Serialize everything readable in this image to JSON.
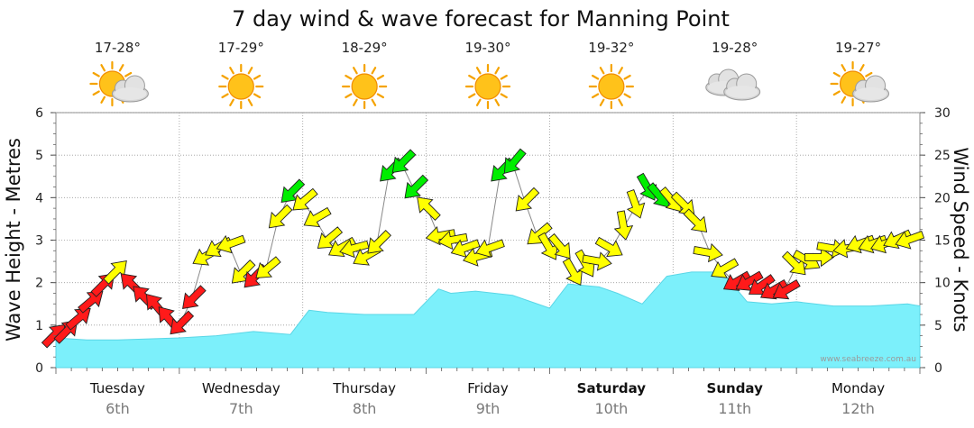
{
  "title": "7 day wind & wave forecast for Manning Point",
  "watermark": "www.seabreeze.com.au",
  "colors": {
    "wave_fill": "#7cf0fb",
    "strong": "#ff1a1a",
    "moderate": "#ffff00",
    "light": "#00ee00",
    "grid": "#9a9a9a"
  },
  "chart_data": {
    "type": "area",
    "title": "7 day wind & wave forecast for Manning Point",
    "ylabel": "Wave Height - Metres",
    "y2label": "Wind Speed - Knots",
    "ylim": [
      0,
      6
    ],
    "y2lim": [
      0,
      30
    ],
    "yticks": [
      "0",
      "1",
      "2",
      "3",
      "4",
      "5",
      "6"
    ],
    "y2ticks": [
      "0",
      "5",
      "10",
      "15",
      "20",
      "25",
      "30"
    ],
    "grid": true,
    "days": [
      {
        "day": "Tuesday",
        "date": "6th",
        "temp": "17-28°",
        "weather": "partly-cloudy",
        "bold": false
      },
      {
        "day": "Wednesday",
        "date": "7th",
        "temp": "17-29°",
        "weather": "sunny",
        "bold": false
      },
      {
        "day": "Thursday",
        "date": "8th",
        "temp": "18-29°",
        "weather": "sunny",
        "bold": false
      },
      {
        "day": "Friday",
        "date": "9th",
        "temp": "19-30°",
        "weather": "sunny",
        "bold": false
      },
      {
        "day": "Saturday",
        "date": "10th",
        "temp": "19-32°",
        "weather": "sunny",
        "bold": true
      },
      {
        "day": "Sunday",
        "date": "11th",
        "temp": "19-28°",
        "weather": "cloudy",
        "bold": true
      },
      {
        "day": "Monday",
        "date": "12th",
        "temp": "19-27°",
        "weather": "partly-cloudy",
        "bold": false
      }
    ],
    "wave_height_series": {
      "name": "Wave Height (m)",
      "x_days": [
        0,
        0.25,
        0.5,
        1.0,
        1.3,
        1.6,
        1.9,
        2.05,
        2.2,
        2.5,
        2.9,
        3.1,
        3.2,
        3.4,
        3.7,
        3.85,
        4.0,
        4.15,
        4.4,
        4.55,
        4.75,
        4.95,
        5.15,
        5.4,
        5.6,
        5.8,
        6.0,
        6.3,
        6.6,
        6.9,
        7.0
      ],
      "values": [
        0.7,
        0.65,
        0.65,
        0.7,
        0.75,
        0.85,
        0.78,
        1.35,
        1.3,
        1.25,
        1.25,
        1.85,
        1.75,
        1.8,
        1.7,
        1.55,
        1.4,
        1.97,
        1.9,
        1.75,
        1.5,
        2.15,
        2.25,
        2.25,
        1.55,
        1.5,
        1.55,
        1.45,
        1.45,
        1.5,
        1.45
      ]
    },
    "wind_series": {
      "name": "Wind Speed (knots)",
      "x_days": [
        0.0,
        0.1,
        0.2,
        0.3,
        0.4,
        0.5,
        0.6,
        0.7,
        0.8,
        0.9,
        1.0,
        1.1,
        1.2,
        1.3,
        1.4,
        1.5,
        1.6,
        1.7,
        1.8,
        1.9,
        2.0,
        2.1,
        2.2,
        2.3,
        2.4,
        2.5,
        2.6,
        2.7,
        2.8,
        2.9,
        3.0,
        3.1,
        3.2,
        3.3,
        3.4,
        3.5,
        3.6,
        3.7,
        3.8,
        3.9,
        4.0,
        4.1,
        4.2,
        4.3,
        4.4,
        4.5,
        4.6,
        4.7,
        4.8,
        4.9,
        5.0,
        5.1,
        5.2,
        5.3,
        5.4,
        5.5,
        5.6,
        5.7,
        5.8,
        5.9,
        6.0,
        6.1,
        6.2,
        6.3,
        6.4,
        6.5,
        6.6,
        6.7,
        6.8,
        6.9
      ],
      "knots": [
        4,
        4.5,
        6,
        8,
        10,
        11.5,
        10,
        8.5,
        7.5,
        6,
        5,
        8,
        13,
        14,
        14.5,
        11,
        10.5,
        11.5,
        17.5,
        20.5,
        19.5,
        17.5,
        15,
        14,
        14,
        13,
        14.5,
        23,
        24,
        21,
        19,
        15.5,
        15,
        14,
        13,
        14,
        23,
        24,
        19.5,
        15.5,
        14,
        14,
        11,
        12,
        12.5,
        14,
        16.5,
        19,
        21,
        20,
        19.5,
        19,
        17,
        13.5,
        11.5,
        10,
        10,
        9.5,
        9,
        9,
        12,
        12.5,
        13,
        14,
        14,
        14.5,
        14.5,
        14.5,
        15,
        15
      ],
      "directions_deg": [
        225,
        225,
        230,
        230,
        225,
        225,
        135,
        135,
        140,
        140,
        45,
        45,
        60,
        60,
        70,
        45,
        45,
        50,
        45,
        45,
        50,
        60,
        50,
        60,
        75,
        60,
        45,
        45,
        45,
        45,
        135,
        80,
        80,
        70,
        75,
        70,
        45,
        40,
        45,
        50,
        330,
        320,
        330,
        330,
        280,
        300,
        350,
        340,
        330,
        320,
        320,
        315,
        315,
        280,
        60,
        60,
        60,
        55,
        60,
        60,
        315,
        300,
        270,
        280,
        80,
        70,
        70,
        70,
        65,
        70
      ]
    }
  }
}
